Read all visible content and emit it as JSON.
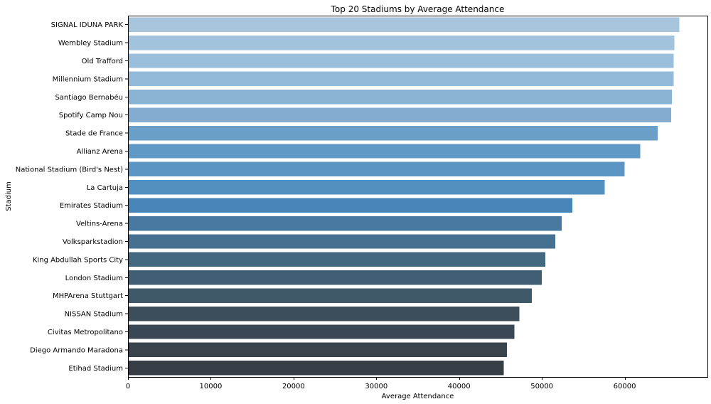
{
  "chart_data": {
    "type": "bar",
    "orientation": "horizontal",
    "title": "Top 20 Stadiums by Average Attendance",
    "xlabel": "Average Attendance",
    "ylabel": "Stadium",
    "categories": [
      "SIGNAL IDUNA PARK",
      "Wembley Stadium",
      "Old Trafford",
      "Millennium Stadium",
      "Santiago Bernabéu",
      "Spotify Camp Nou",
      "Stade de France",
      "Allianz Arena",
      "National Stadium (Bird's Nest)",
      "La Cartuja",
      "Emirates Stadium",
      "Veltins-Arena",
      "Volksparkstadion",
      "King Abdullah Sports City",
      "London Stadium",
      "MHPArena Stuttgart",
      "NISSAN Stadium",
      "Civitas Metropolitano",
      "Diego Armando Maradona",
      "Etihad Stadium"
    ],
    "values": [
      66600,
      66000,
      65900,
      65900,
      65700,
      65600,
      64000,
      61900,
      60000,
      57600,
      53700,
      52400,
      51600,
      50400,
      50000,
      48800,
      47300,
      46700,
      45800,
      45400
    ],
    "colors": [
      "#a7c6de",
      "#a2c3dc",
      "#9bbfda",
      "#93bad8",
      "#8ab2d3",
      "#82add0",
      "#6a9fc8",
      "#6199c6",
      "#5b95c4",
      "#5190c0",
      "#4784b8",
      "#4678a0",
      "#45708f",
      "#43687f",
      "#415f74",
      "#3f586a",
      "#3c4e5c",
      "#3a4754",
      "#38434c",
      "#363d44"
    ],
    "xlim": [
      0,
      70000
    ],
    "xticks": [
      0,
      10000,
      20000,
      30000,
      40000,
      50000,
      60000
    ],
    "xtick_labels": [
      "0",
      "10000",
      "20000",
      "30000",
      "40000",
      "50000",
      "60000"
    ],
    "grid": false,
    "legend": "none"
  }
}
